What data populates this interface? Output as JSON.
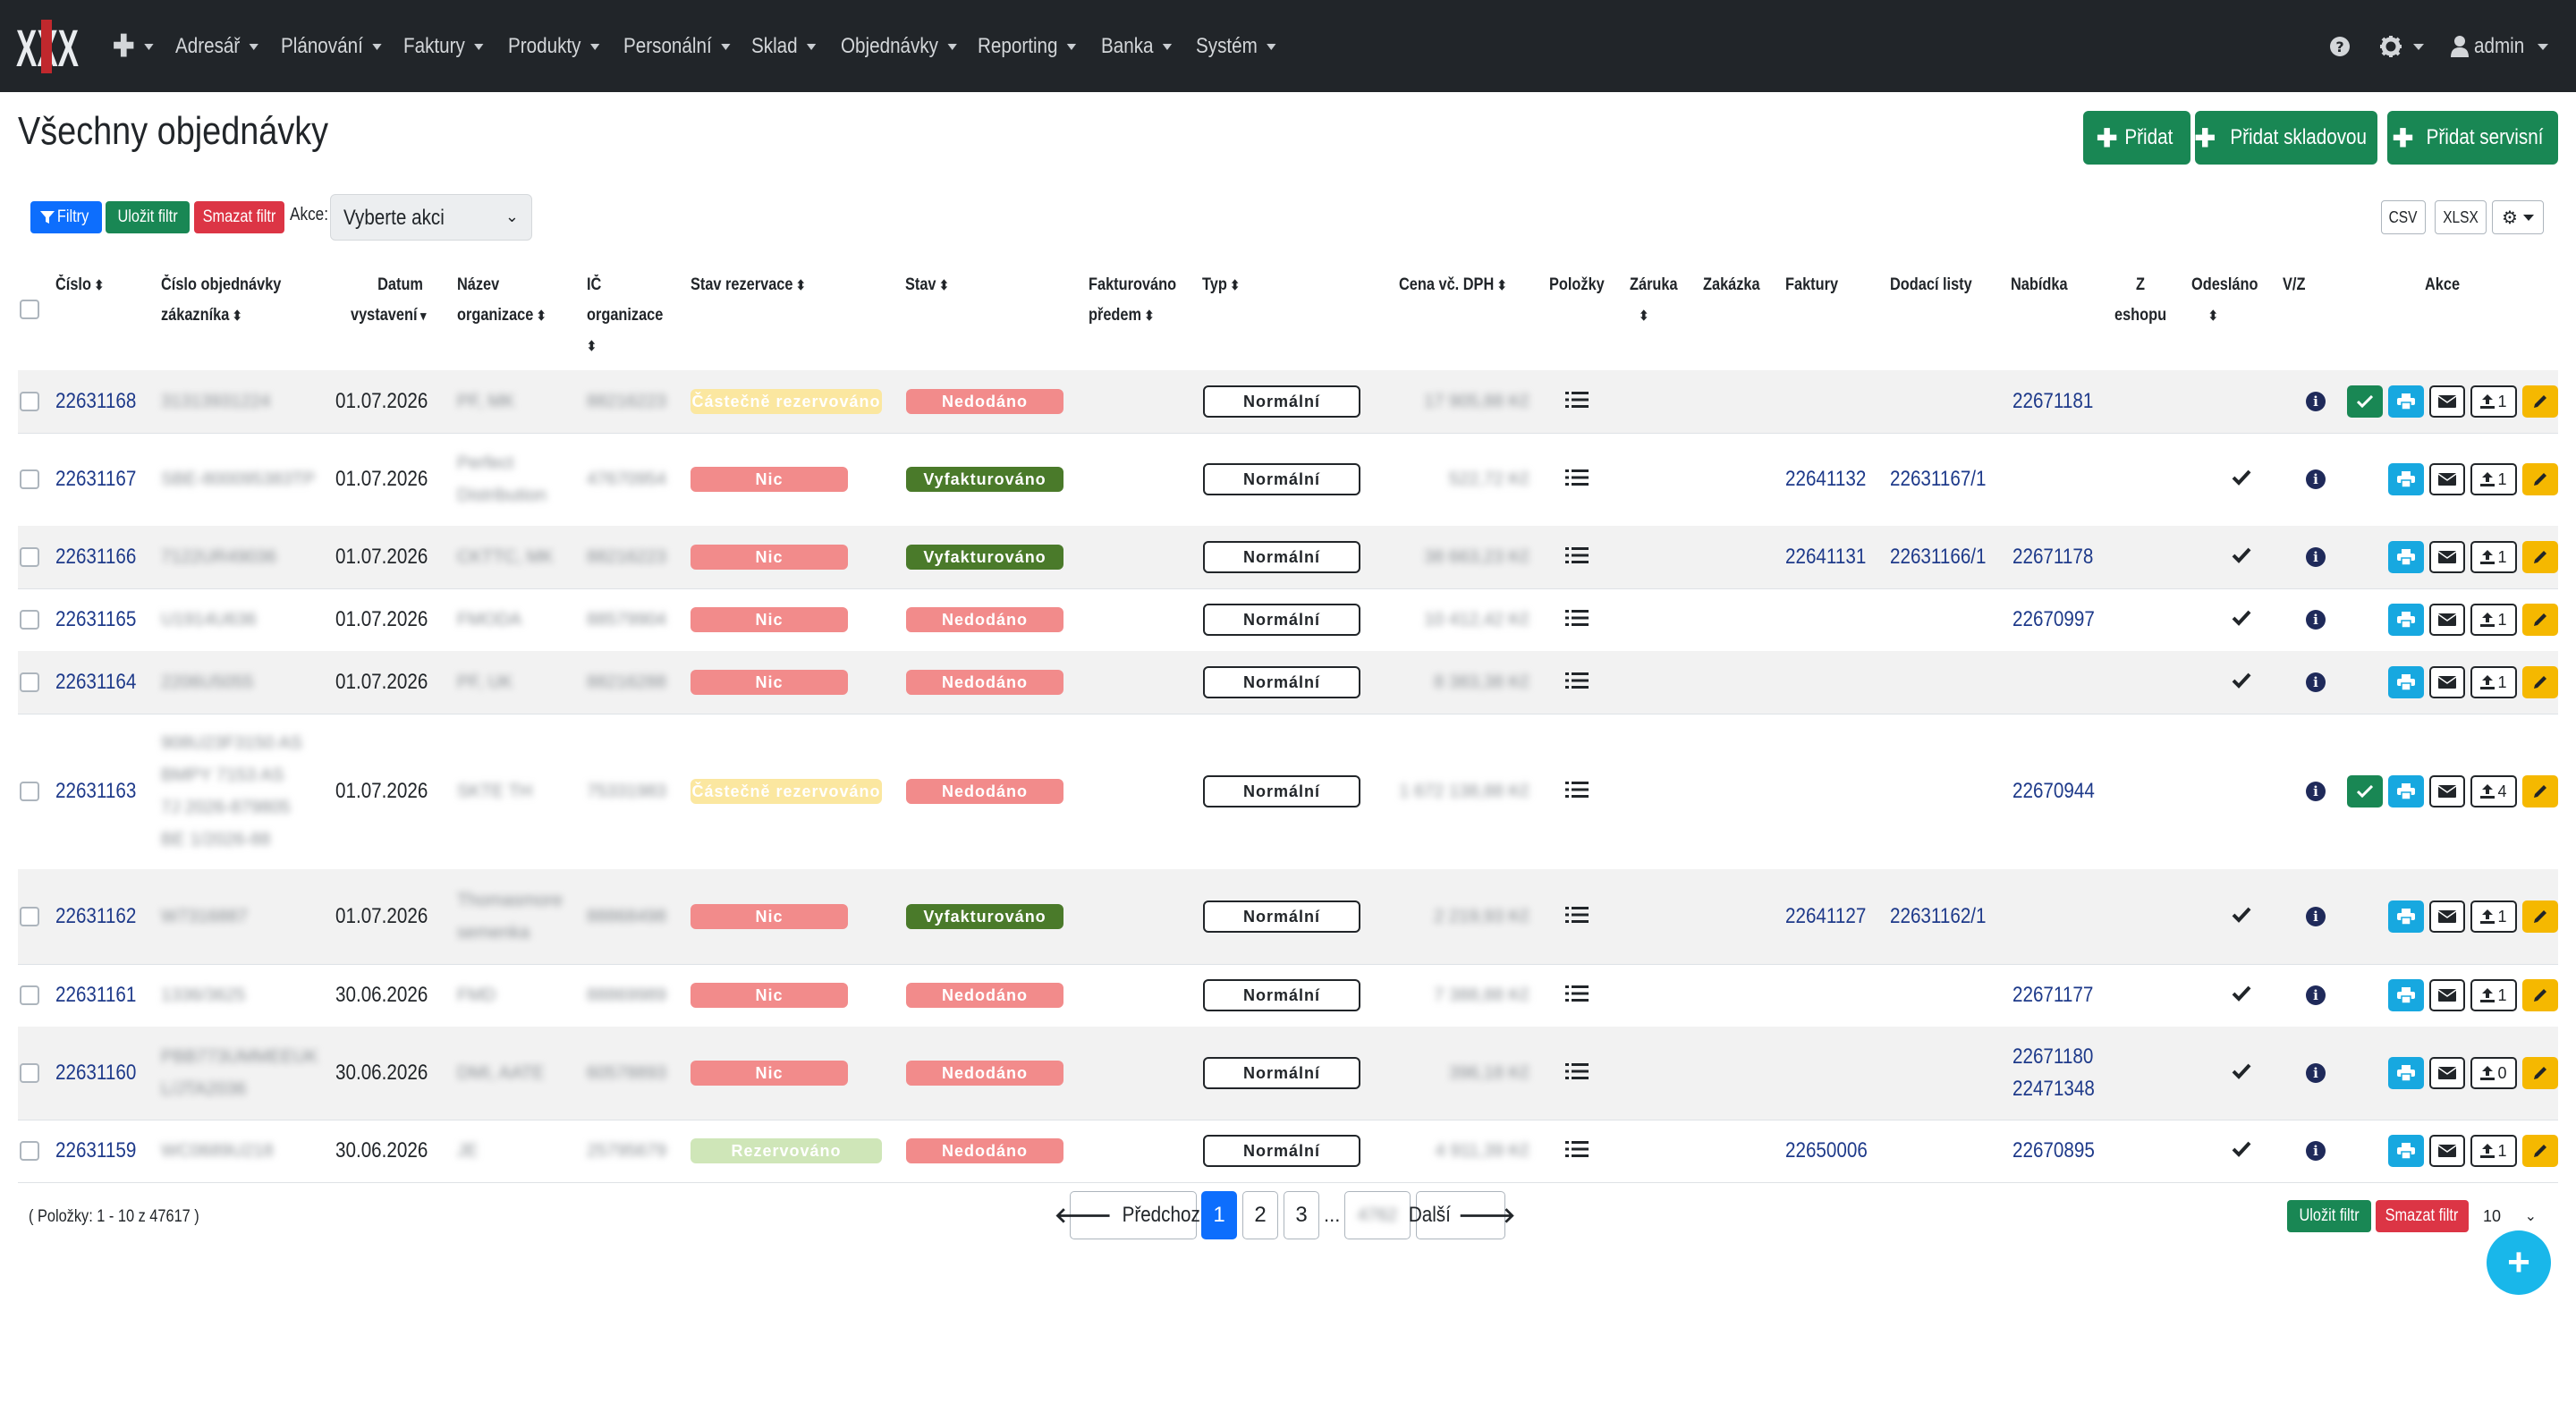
{
  "nav": {
    "items": [
      {
        "label": "Adresář"
      },
      {
        "label": "Plánování"
      },
      {
        "label": "Faktury"
      },
      {
        "label": "Produkty"
      },
      {
        "label": "Personální"
      },
      {
        "label": "Sklad"
      },
      {
        "label": "Objednávky"
      },
      {
        "label": "Reporting"
      },
      {
        "label": "Banka"
      },
      {
        "label": "Systém"
      }
    ],
    "user": "admin"
  },
  "page": {
    "title": "Všechny objednávky",
    "add_label": "Přidat",
    "add_stock_label": "Přidat skladovou",
    "add_service_label": "Přidat servisní"
  },
  "filters": {
    "filters_label": "Filtry",
    "save_filter_label": "Uložit filtr",
    "clear_filter_label": "Smazat filtr",
    "actions_label": "Akce:",
    "actions_select": "Vyberte akci",
    "csv_label": "CSV",
    "xlsx_label": "XLSX"
  },
  "table": {
    "headers": {
      "cislo": "Číslo",
      "cislo_obj_1": "Číslo objednávky",
      "cislo_obj_2": "zákazníka",
      "datum_1": "Datum",
      "datum_2": "vystavení",
      "nazev_1": "Název",
      "nazev_2": "organizace",
      "ic_1": "IČ",
      "ic_2": "organizace",
      "stav_rez": "Stav rezervace",
      "stav": "Stav",
      "fakt_1": "Fakturováno",
      "fakt_2": "předem",
      "typ": "Typ",
      "cena": "Cena vč. DPH",
      "polozky": "Položky",
      "zaruka": "Záruka",
      "zakazka": "Zakázka",
      "faktury": "Faktury",
      "dodaci": "Dodací listy",
      "nabidka": "Nabídka",
      "eshop_1": "Z",
      "eshop_2": "eshopu",
      "odeslano": "Odesláno",
      "vz": "V/Z",
      "akce": "Akce"
    },
    "rows": [
      {
        "cislo": "22631168",
        "cust": [
          "31313931224"
        ],
        "datum": "01.07.2026",
        "org": [
          "PF, MK"
        ],
        "ic": "88216223",
        "rez": "Částečně rezervováno",
        "stav": "Nedodáno",
        "typ": "Normální",
        "cena": "17 905,88 Kč",
        "faktura": "",
        "dodaci": "",
        "nabidky": [
          "22671181"
        ],
        "odeslano": false,
        "uploads": "1",
        "confirm": true
      },
      {
        "cislo": "22631167",
        "cust": [
          "SBE-800095383TP"
        ],
        "datum": "01.07.2026",
        "org": [
          "Perfect",
          "Distribution"
        ],
        "ic": "47670954",
        "rez": "Nic",
        "stav": "Vyfakturováno",
        "typ": "Normální",
        "cena": "522,72 Kč",
        "faktura": "22641132",
        "dodaci": "22631167/1",
        "nabidky": [],
        "odeslano": true,
        "uploads": "1",
        "confirm": false
      },
      {
        "cislo": "22631166",
        "cust": [
          "7122UR49036"
        ],
        "datum": "01.07.2026",
        "org": [
          "CKTTC, MK"
        ],
        "ic": "88216223",
        "rez": "Nic",
        "stav": "Vyfakturováno",
        "typ": "Normální",
        "cena": "38 663,23 Kč",
        "faktura": "22641131",
        "dodaci": "22631166/1",
        "nabidky": [
          "22671178"
        ],
        "odeslano": true,
        "uploads": "1",
        "confirm": false
      },
      {
        "cislo": "22631165",
        "cust": [
          "U1914U636"
        ],
        "datum": "01.07.2026",
        "org": [
          "FMODA"
        ],
        "ic": "88579904",
        "rez": "Nic",
        "stav": "Nedodáno",
        "typ": "Normální",
        "cena": "10 412,42 Kč",
        "faktura": "",
        "dodaci": "",
        "nabidky": [
          "22670997"
        ],
        "odeslano": true,
        "uploads": "1",
        "confirm": false
      },
      {
        "cislo": "22631164",
        "cust": [
          "2206U5055"
        ],
        "datum": "01.07.2026",
        "org": [
          "PF, UK"
        ],
        "ic": "88216288",
        "rez": "Nic",
        "stav": "Nedodáno",
        "typ": "Normální",
        "cena": "8 383,38 Kč",
        "faktura": "",
        "dodaci": "",
        "nabidky": [],
        "odeslano": true,
        "uploads": "1",
        "confirm": false
      },
      {
        "cislo": "22631163",
        "cust": [
          "908U23F3150 AS",
          "BMPY 7153 AS",
          "7J 2026-879805",
          "BE 1/2026-88"
        ],
        "datum": "01.07.2026",
        "org": [
          "SKTE TH"
        ],
        "ic": "75331983",
        "rez": "Částečně rezervováno",
        "stav": "Nedodáno",
        "typ": "Normální",
        "cena": "1 672 138,88 Kč",
        "faktura": "",
        "dodaci": "",
        "nabidky": [
          "22670944"
        ],
        "odeslano": false,
        "uploads": "4",
        "confirm": true
      },
      {
        "cislo": "22631162",
        "cust": [
          "W7316887"
        ],
        "datum": "01.07.2026",
        "org": [
          "Thomasmore",
          "semenka"
        ],
        "ic": "88868498",
        "rez": "Nic",
        "stav": "Vyfakturováno",
        "typ": "Normální",
        "cena": "2 219,93 Kč",
        "faktura": "22641127",
        "dodaci": "22631162/1",
        "nabidky": [],
        "odeslano": true,
        "uploads": "1",
        "confirm": false
      },
      {
        "cislo": "22631161",
        "cust": [
          "1336/3625"
        ],
        "datum": "30.06.2026",
        "org": [
          "FMD"
        ],
        "ic": "88869989",
        "rez": "Nic",
        "stav": "Nedodáno",
        "typ": "Normální",
        "cena": "7 388,88 Kč",
        "faktura": "",
        "dodaci": "",
        "nabidky": [
          "22671177"
        ],
        "odeslano": true,
        "uploads": "1",
        "confirm": false
      },
      {
        "cislo": "22631160",
        "cust": [
          "PBB773UMMEEUK",
          "L/JTA2036"
        ],
        "datum": "30.06.2026",
        "org": [
          "DMI, AATE"
        ],
        "ic": "60578893",
        "rez": "Nic",
        "stav": "Nedodáno",
        "typ": "Normální",
        "cena": "396,18 Kč",
        "faktura": "",
        "dodaci": "",
        "nabidky": [
          "22671180",
          "22471348"
        ],
        "odeslano": true,
        "uploads": "0",
        "confirm": false
      },
      {
        "cislo": "22631159",
        "cust": [
          "WC0689U218"
        ],
        "datum": "30.06.2026",
        "org": [
          "JE"
        ],
        "ic": "25795679",
        "rez": "Rezervováno",
        "stav": "Nedodáno",
        "typ": "Normální",
        "cena": "4 911,39 Kč",
        "faktura": "22650006",
        "dodaci": "",
        "nabidky": [
          "22670895"
        ],
        "odeslano": true,
        "uploads": "1",
        "confirm": false
      }
    ]
  },
  "footer": {
    "items_note": "( Položky: 1 - 10 z 47617 )",
    "prev_label": "Předchozí",
    "next_label": "Další",
    "pages": [
      "1",
      "2",
      "3"
    ],
    "ellipsis": "...",
    "last_page": "4762",
    "save_filter_label": "Uložit filtr",
    "clear_filter_label": "Smazat filtr",
    "page_size": "10"
  },
  "colors": {
    "nav_bg": "#212529",
    "green": "#198754",
    "red": "#dc3545",
    "blue": "#0d6efd",
    "badge_red": "#f28b8b",
    "badge_yellow": "#fbe7a0",
    "badge_green": "#4a7a2a",
    "badge_light_green": "#cfe6b8"
  }
}
